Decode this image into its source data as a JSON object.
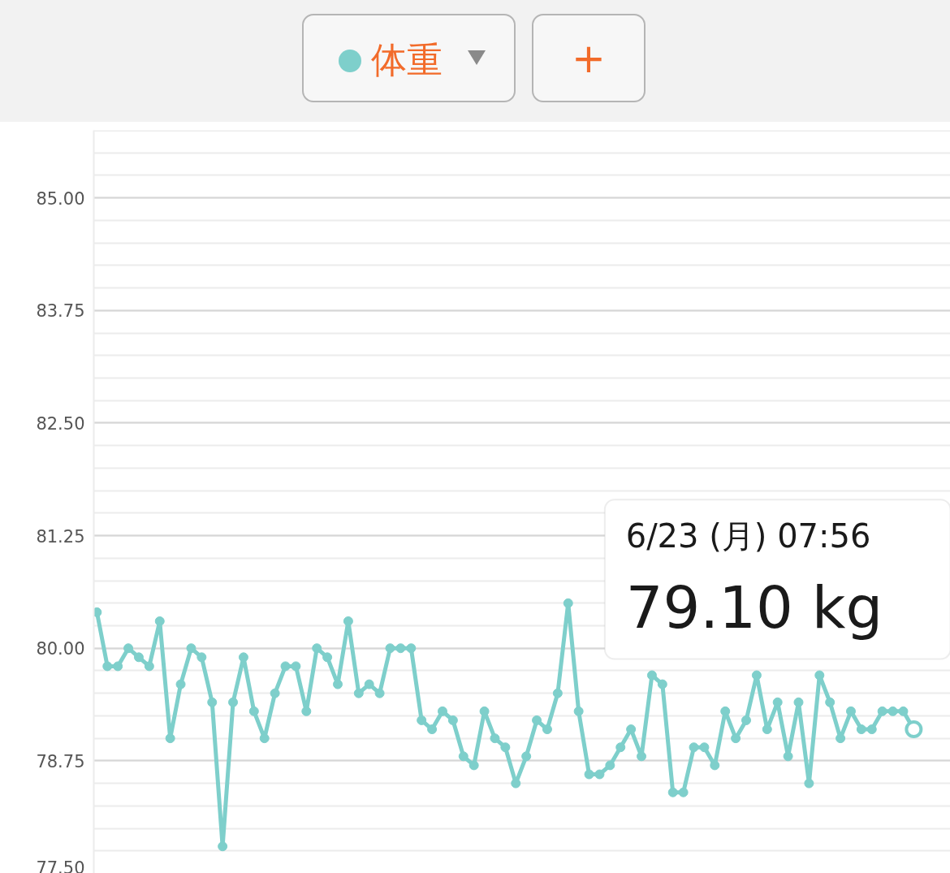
{
  "chart_data": {
    "type": "line",
    "title": "体重",
    "categories": [
      null,
      null,
      null,
      null,
      null,
      null,
      null,
      null,
      null,
      null,
      null,
      null,
      null,
      null,
      null,
      null,
      null,
      null,
      null,
      null,
      null,
      null,
      null,
      null,
      null,
      null,
      null,
      null,
      null,
      null,
      null,
      null,
      null,
      null,
      null,
      null,
      null,
      null,
      null,
      null,
      null,
      null,
      null,
      null,
      null,
      null,
      null,
      null,
      null,
      null,
      null,
      null,
      null,
      null,
      null,
      null,
      null,
      null,
      null,
      null,
      null,
      null,
      null,
      null,
      null,
      null,
      null,
      null,
      null,
      null,
      null,
      null,
      null,
      null,
      null,
      null,
      null,
      null,
      null
    ],
    "series": [
      {
        "color": "#7ecfcb",
        "values": [
          80.4,
          79.8,
          79.8,
          80.0,
          79.9,
          79.8,
          80.3,
          79.0,
          79.6,
          80.0,
          79.9,
          79.4,
          77.8,
          79.4,
          79.9,
          79.3,
          79.0,
          79.5,
          79.8,
          79.8,
          79.3,
          80.0,
          79.9,
          79.6,
          80.3,
          79.5,
          79.6,
          79.5,
          80.0,
          80.0,
          80.0,
          79.2,
          79.1,
          79.3,
          79.2,
          78.8,
          78.7,
          79.3,
          79.0,
          78.9,
          78.5,
          78.8,
          79.2,
          79.1,
          79.5,
          80.5,
          79.3,
          78.6,
          78.6,
          78.7,
          78.9,
          79.1,
          78.8,
          79.7,
          79.6,
          78.4,
          78.4,
          78.9,
          78.9,
          78.7,
          79.3,
          79.0,
          79.2,
          79.7,
          79.1,
          79.4,
          78.8,
          79.4,
          78.5,
          79.7,
          79.4,
          79.0,
          79.3,
          79.1,
          79.1,
          79.3,
          79.3,
          79.3,
          79.1
        ]
      }
    ],
    "ylim": [
      77.5,
      85.75
    ],
    "yticks": [
      {
        "value": 77.5,
        "label": "77.50"
      },
      {
        "value": 77.75,
        "label": null
      },
      {
        "value": 78.0,
        "label": null
      },
      {
        "value": 78.25,
        "label": null
      },
      {
        "value": 78.5,
        "label": null
      },
      78.75,
      {
        "value": 79.0,
        "label": null
      },
      {
        "value": 79.25,
        "label": null
      },
      {
        "value": 79.5,
        "label": null
      },
      {
        "value": 79.75,
        "label": null
      },
      {
        "value": 80.0,
        "label": "80.00"
      },
      {
        "value": 80.25,
        "label": null
      },
      {
        "value": 80.5,
        "label": null
      },
      {
        "value": 80.75,
        "label": null
      },
      {
        "value": 81.0,
        "label": null
      },
      81.25,
      {
        "value": 81.5,
        "label": null
      },
      {
        "value": 81.75,
        "label": null
      },
      {
        "value": 82.0,
        "label": null
      },
      {
        "value": 82.25,
        "label": null
      },
      {
        "value": 82.5,
        "label": "82.50"
      },
      {
        "value": 82.75,
        "label": null
      },
      {
        "value": 83.0,
        "label": null
      },
      {
        "value": 83.25,
        "label": null
      },
      {
        "value": 83.5,
        "label": null
      },
      83.75,
      {
        "value": 84.0,
        "label": null
      },
      {
        "value": 84.25,
        "label": null
      },
      {
        "value": 84.5,
        "label": null
      },
      {
        "value": 84.75,
        "label": null
      },
      {
        "value": 85.0,
        "label": "85.00"
      },
      {
        "value": 85.25,
        "label": null
      },
      {
        "value": 85.5,
        "label": null
      },
      {
        "value": 85.75,
        "label": null
      }
    ],
    "grid": "y",
    "marker": "circle",
    "line_style": "solid",
    "tick_labels": "y",
    "annotations": [
      "6/23 (月) 07:56",
      "79.10 kg",
      "+"
    ]
  }
}
